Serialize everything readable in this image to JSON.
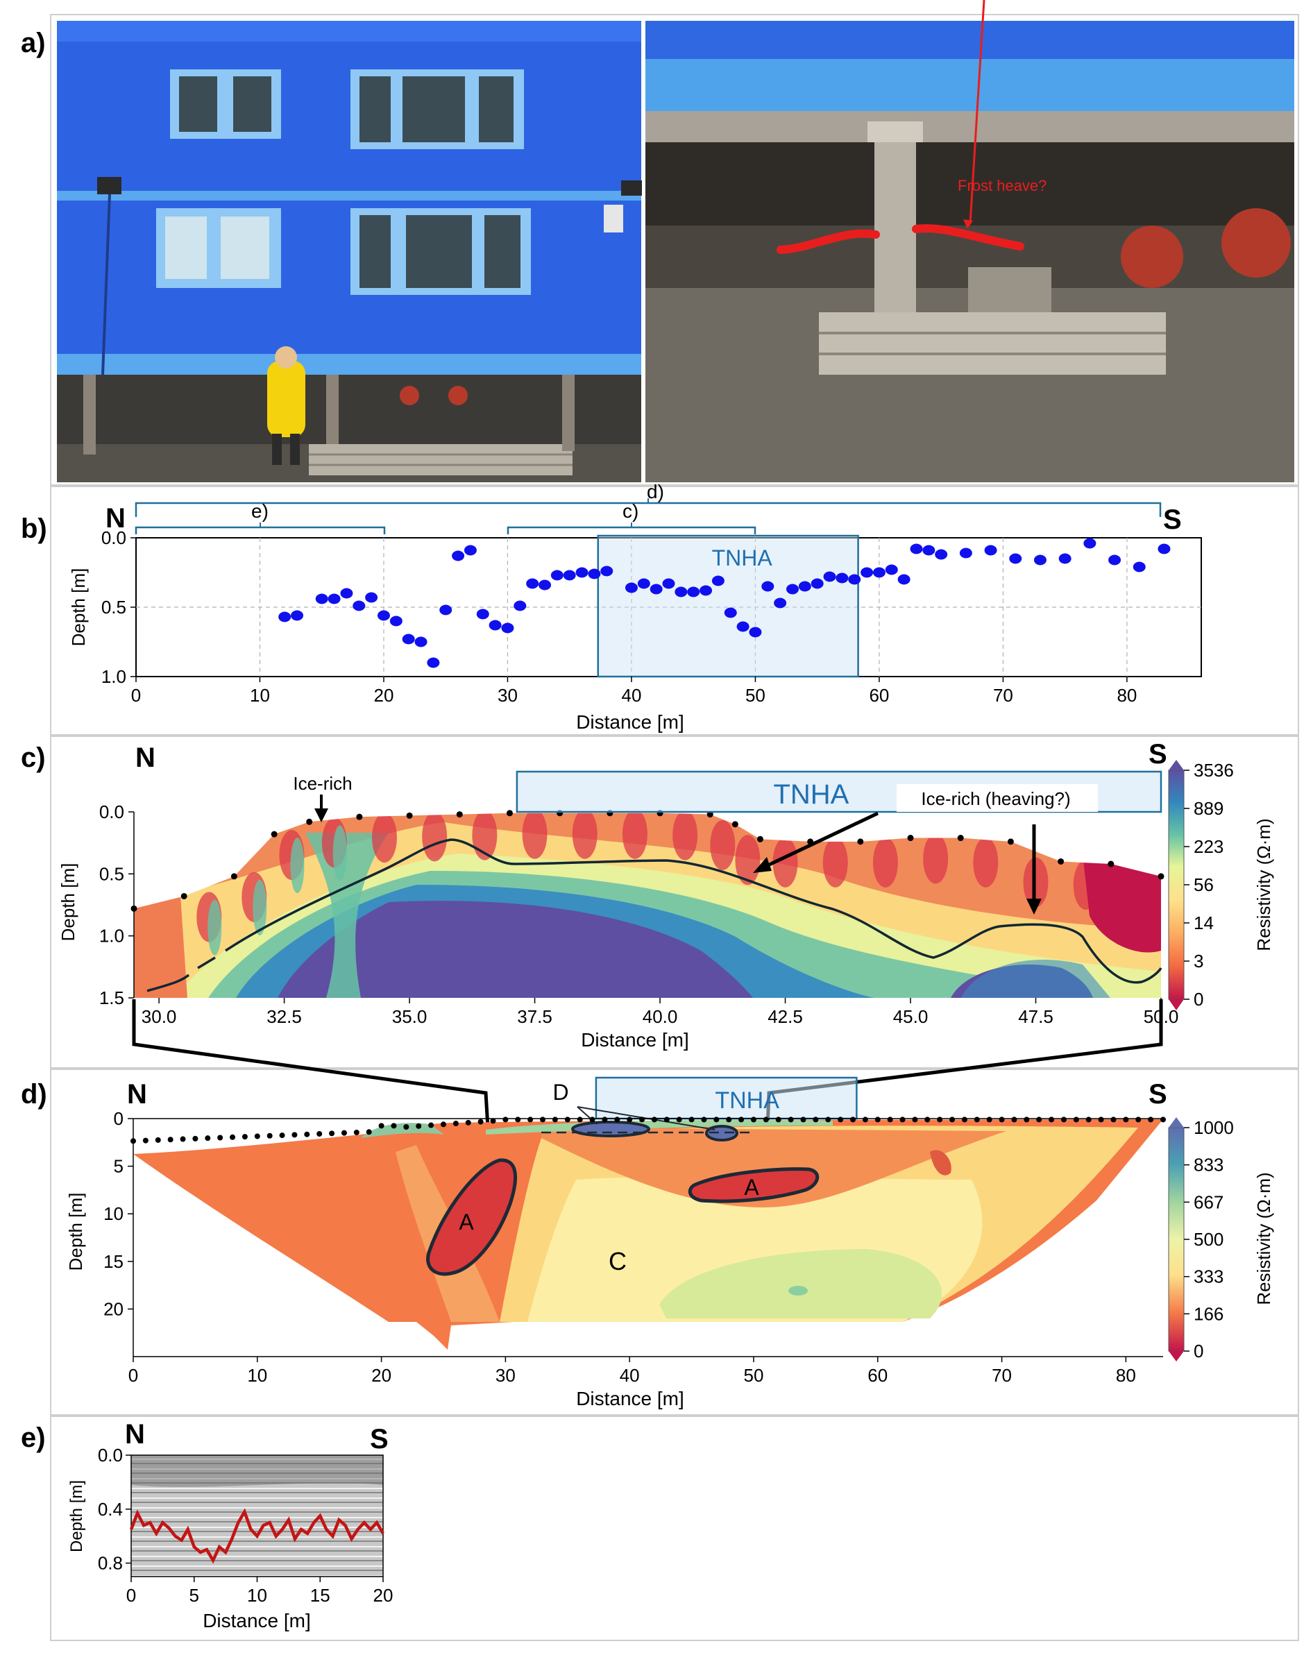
{
  "panel_labels": {
    "a": "a)",
    "b": "b)",
    "c": "c)",
    "d": "d)",
    "e": "e)"
  },
  "compass": {
    "north": "N",
    "south": "S"
  },
  "photos": {
    "annotation": "Frost heave?",
    "colors": {
      "wall": "#2f66e6",
      "trim": "#5aa8ee",
      "ground": "#5a5650",
      "heave_line": "#e81e1e"
    }
  },
  "panel_b": {
    "ylabel": "Depth [m]",
    "xlabel": "Distance [m]",
    "yticks": [
      "0.0",
      "0.5",
      "1.0"
    ],
    "xticks": [
      "0",
      "10",
      "20",
      "30",
      "40",
      "50",
      "60",
      "70",
      "80"
    ],
    "bracket_labels": {
      "e": "e)",
      "c": "c)",
      "d": "d)"
    },
    "tnha_label": "TNHA",
    "marker_color": "#1010ee"
  },
  "panel_c": {
    "ylabel": "Depth [m]",
    "xlabel": "Distance [m]",
    "yticks": [
      "0.0",
      "0.5",
      "1.0",
      "1.5"
    ],
    "xticks": [
      "30.0",
      "32.5",
      "35.0",
      "37.5",
      "40.0",
      "42.5",
      "45.0",
      "47.5",
      "50.0"
    ],
    "annotations": {
      "ice_rich": "Ice-rich",
      "ice_rich_heaving": "Ice-rich (heaving?)",
      "tnha": "TNHA"
    },
    "colorbar_label": "Resistivity (Ω·m)",
    "colorbar_ticks": [
      "3536",
      "889",
      "223",
      "56",
      "14",
      "3",
      "0"
    ]
  },
  "panel_d": {
    "ylabel": "Depth [m]",
    "xlabel": "Distance [m]",
    "yticks": [
      "0",
      "5",
      "10",
      "15",
      "20"
    ],
    "xticks": [
      "0",
      "10",
      "20",
      "30",
      "40",
      "50",
      "60",
      "70",
      "80"
    ],
    "zone_labels": {
      "a1": "A",
      "a2": "A",
      "c": "C",
      "d": "D"
    },
    "tnha_label": "TNHA",
    "colorbar_label": "Resistivity (Ω·m)",
    "colorbar_ticks": [
      "1000",
      "833",
      "667",
      "500",
      "333",
      "166",
      "0"
    ]
  },
  "panel_e": {
    "ylabel": "Depth [m]",
    "xlabel": "Distance [m]",
    "yticks": [
      "0.0",
      "0.4",
      "0.8"
    ],
    "xticks": [
      "0",
      "5",
      "10",
      "15",
      "20"
    ]
  },
  "chart_data": [
    {
      "type": "scatter",
      "panel": "b",
      "x": [
        12,
        13,
        15,
        16,
        17,
        18,
        19,
        20,
        21,
        22,
        23,
        24,
        25,
        26,
        27,
        28,
        29,
        30,
        31,
        32,
        33,
        34,
        35,
        36,
        37,
        38,
        40,
        41,
        42,
        43,
        44,
        45,
        46,
        47,
        48,
        49,
        50,
        51,
        52,
        53,
        54,
        55,
        56,
        57,
        58,
        59,
        60,
        61,
        62,
        63,
        64,
        65,
        67,
        69,
        71,
        73,
        75,
        77,
        79,
        81,
        83
      ],
      "y": [
        0.57,
        0.56,
        0.44,
        0.44,
        0.4,
        0.49,
        0.43,
        0.56,
        0.6,
        0.73,
        0.75,
        0.9,
        0.52,
        0.13,
        0.09,
        0.55,
        0.63,
        0.65,
        0.49,
        0.33,
        0.34,
        0.27,
        0.27,
        0.25,
        0.26,
        0.24,
        0.36,
        0.33,
        0.37,
        0.33,
        0.39,
        0.39,
        0.38,
        0.31,
        0.54,
        0.64,
        0.68,
        0.35,
        0.47,
        0.37,
        0.35,
        0.33,
        0.28,
        0.29,
        0.3,
        0.25,
        0.25,
        0.23,
        0.3,
        0.08,
        0.09,
        0.12,
        0.11,
        0.09,
        0.15,
        0.16,
        0.15,
        0.04,
        0.16,
        0.21,
        0.08
      ],
      "xlim": [
        0,
        86
      ],
      "ylim": [
        1.0,
        0.0
      ],
      "tnha_range": [
        37.3,
        58.3
      ],
      "brackets": [
        {
          "label": "e)",
          "range": [
            0,
            20
          ]
        },
        {
          "label": "c)",
          "range": [
            30,
            50
          ]
        },
        {
          "label": "d)",
          "range": [
            0,
            83
          ]
        }
      ]
    },
    {
      "type": "heatmap",
      "panel": "c",
      "xlim": [
        29.5,
        50.0
      ],
      "ylim": [
        1.5,
        0.0
      ],
      "colorbar": {
        "ticks": [
          3536,
          889,
          223,
          56,
          14,
          3,
          0
        ]
      },
      "surface_x": [
        29.5,
        30.5,
        31.5,
        32.3,
        33.0,
        34.0,
        35.0,
        36.0,
        37.0,
        38.0,
        39.0,
        40.0,
        41.0,
        41.5,
        42.0,
        43.0,
        44.0,
        45.0,
        46.0,
        47.0,
        48.0,
        49.0,
        50.0
      ],
      "surface_y": [
        0.78,
        0.68,
        0.52,
        0.18,
        0.08,
        0.04,
        0.03,
        0.02,
        0.01,
        0.01,
        0.01,
        0.01,
        0.02,
        0.1,
        0.22,
        0.24,
        0.24,
        0.21,
        0.21,
        0.24,
        0.4,
        0.42,
        0.52
      ],
      "tnha_range": [
        37.2,
        50.0
      ]
    },
    {
      "type": "heatmap",
      "panel": "d",
      "xlim": [
        0,
        83
      ],
      "ylim": [
        25,
        0
      ],
      "colorbar": {
        "ticks": [
          1000,
          833,
          667,
          500,
          333,
          166,
          0
        ]
      },
      "tnha_range": [
        37.3,
        58.3
      ]
    },
    {
      "type": "line",
      "panel": "e",
      "xlim": [
        0,
        20
      ],
      "ylim": [
        0.9,
        0.0
      ],
      "x": [
        0,
        0.5,
        1,
        1.5,
        2,
        2.5,
        3,
        3.5,
        4,
        4.5,
        5,
        5.5,
        6,
        6.5,
        7,
        7.5,
        8,
        8.5,
        9,
        9.5,
        10,
        10.5,
        11,
        11.5,
        12,
        12.5,
        13,
        13.5,
        14,
        14.5,
        15,
        15.5,
        16,
        16.5,
        17,
        17.5,
        18,
        18.5,
        19,
        19.5,
        20
      ],
      "y": [
        0.55,
        0.43,
        0.52,
        0.5,
        0.58,
        0.5,
        0.54,
        0.6,
        0.63,
        0.55,
        0.68,
        0.72,
        0.7,
        0.78,
        0.68,
        0.72,
        0.62,
        0.5,
        0.42,
        0.55,
        0.6,
        0.52,
        0.5,
        0.6,
        0.55,
        0.48,
        0.62,
        0.55,
        0.58,
        0.5,
        0.45,
        0.55,
        0.6,
        0.48,
        0.52,
        0.62,
        0.55,
        0.5,
        0.55,
        0.5,
        0.58
      ]
    }
  ]
}
